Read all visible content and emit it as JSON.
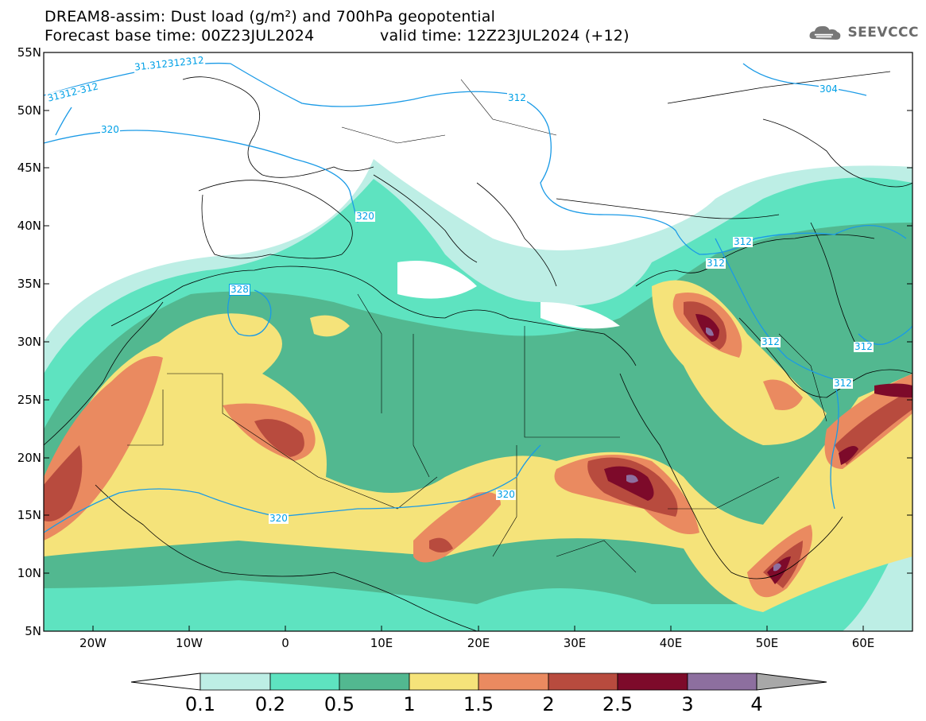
{
  "header": {
    "line1": "DREAM8-assim: Dust load (g/m²) and 700hPa geopotential",
    "line2_base": "Forecast base time: 00Z23JUL2024",
    "line2_valid": "valid time: 12Z23JUL2024 (+12)"
  },
  "logo": {
    "text": "SEEVCCC",
    "icon": "cloud-icon"
  },
  "map": {
    "lat_labels": [
      "55N",
      "50N",
      "45N",
      "40N",
      "35N",
      "30N",
      "25N",
      "20N",
      "15N",
      "10N",
      "5N"
    ],
    "lon_labels": [
      "20W",
      "10W",
      "0",
      "10E",
      "20E",
      "30E",
      "40E",
      "50E",
      "60E"
    ],
    "contour_labels": [
      "31312-312",
      "31.312312312",
      "312",
      "320",
      "304",
      "320",
      "328",
      "312",
      "312",
      "312",
      "312",
      "320",
      "320",
      "312"
    ]
  },
  "colorbar": {
    "labels": [
      "0.1",
      "0.2",
      "0.5",
      "1",
      "1.5",
      "2",
      "2.5",
      "3",
      "4"
    ],
    "colors": [
      "#ffffff",
      "#bdeee5",
      "#5ee3c0",
      "#52b890",
      "#f5e37a",
      "#ea8a60",
      "#b84b3e",
      "#7d0a2a",
      "#8d6f9f",
      "#a8a8a8"
    ]
  }
}
